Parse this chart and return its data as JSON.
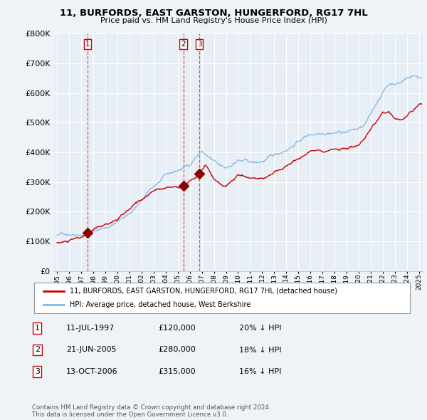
{
  "title": "11, BURFORDS, EAST GARSTON, HUNGERFORD, RG17 7HL",
  "subtitle": "Price paid vs. HM Land Registry's House Price Index (HPI)",
  "legend_line1": "11, BURFORDS, EAST GARSTON, HUNGERFORD, RG17 7HL (detached house)",
  "legend_line2": "HPI: Average price, detached house, West Berkshire",
  "copyright": "Contains HM Land Registry data © Crown copyright and database right 2024.\nThis data is licensed under the Open Government Licence v3.0.",
  "transactions": [
    {
      "num": 1,
      "date": "11-JUL-1997",
      "price": 120000,
      "pct": "20%",
      "dir": "↓",
      "x": 1997.53
    },
    {
      "num": 2,
      "date": "21-JUN-2005",
      "price": 280000,
      "pct": "18%",
      "dir": "↓",
      "x": 2005.47
    },
    {
      "num": 3,
      "date": "13-OCT-2006",
      "price": 315000,
      "pct": "16%",
      "dir": "↓",
      "x": 2006.79
    }
  ],
  "hpi_color": "#7ab8e8",
  "price_color": "#cc0000",
  "vline_color": "#dd4444",
  "dot_color": "#8b0000",
  "background_color": "#eef3f8",
  "plot_bg": "#e8eef5",
  "grid_color": "#ffffff",
  "ylim": [
    0,
    800000
  ],
  "xlim": [
    1994.7,
    2025.3
  ],
  "yticks": [
    0,
    100000,
    200000,
    300000,
    400000,
    500000,
    600000,
    700000,
    800000
  ]
}
